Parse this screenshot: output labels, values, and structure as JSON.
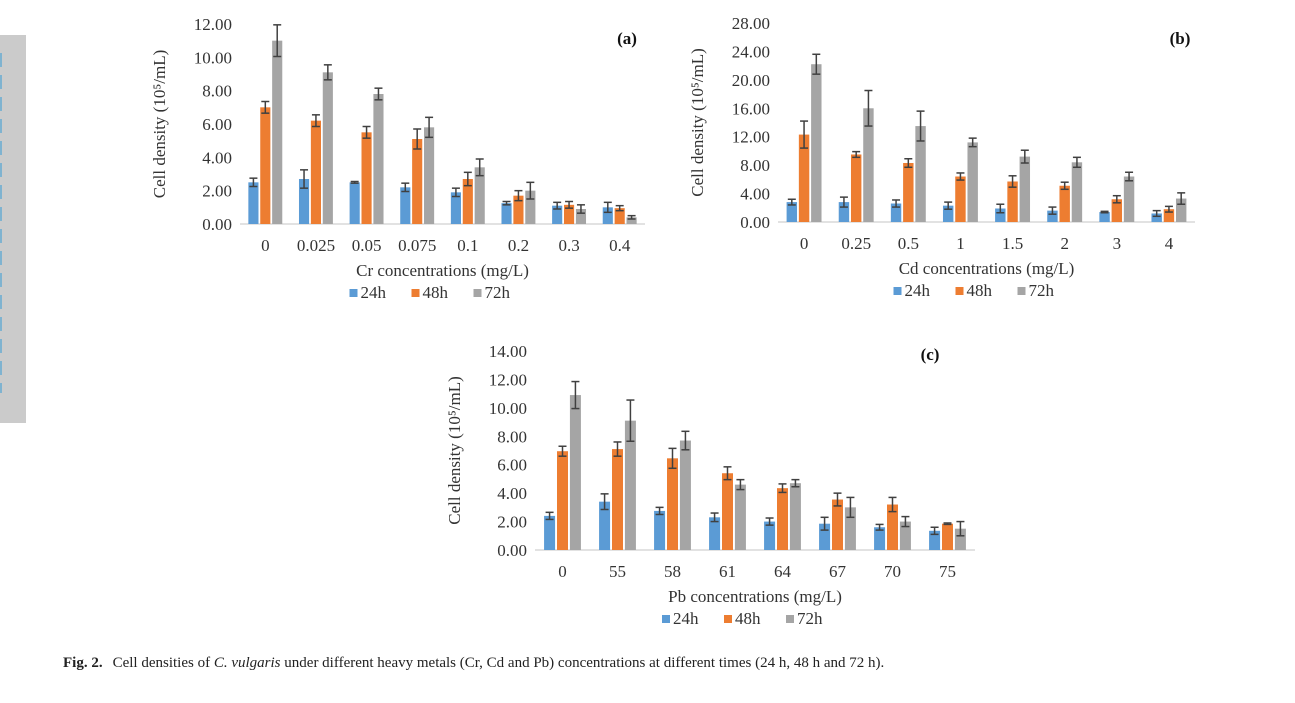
{
  "figure": {
    "caption_label": "Fig. 2.",
    "caption_pre": "Cell densities of ",
    "caption_species": "C. vulgaris",
    "caption_post": " under different heavy metals (Cr, Cd and Pb) concentrations at different times (24 h, 48 h and 72 h)."
  },
  "colors": {
    "24h": "#5b9bd5",
    "48h": "#ed7d31",
    "72h": "#a5a5a5",
    "error_bar": "#404040",
    "axis": "#d9d9d9"
  },
  "chart_data": [
    {
      "id": "a",
      "type": "bar",
      "panel_label": "(a)",
      "title": "",
      "xlabel": "Cr concentrations (mg/L)",
      "ylabel": "Cell density (10⁵/mL)",
      "ylim": [
        0,
        12
      ],
      "yticks": [
        "0.00",
        "2.00",
        "4.00",
        "6.00",
        "8.00",
        "10.00",
        "12.00"
      ],
      "categories": [
        "0",
        "0.025",
        "0.05",
        "0.075",
        "0.1",
        "0.2",
        "0.3",
        "0.4"
      ],
      "legend": [
        "24h",
        "48h",
        "72h"
      ],
      "legend_position": "bottom",
      "grid": false,
      "series": [
        {
          "name": "24h",
          "values": [
            2.5,
            2.7,
            2.5,
            2.2,
            1.9,
            1.25,
            1.1,
            1.0
          ],
          "errors": [
            0.25,
            0.55,
            0.05,
            0.25,
            0.25,
            0.1,
            0.2,
            0.3
          ]
        },
        {
          "name": "48h",
          "values": [
            7.0,
            6.2,
            5.5,
            5.1,
            2.7,
            1.7,
            1.15,
            0.95
          ],
          "errors": [
            0.35,
            0.35,
            0.35,
            0.6,
            0.4,
            0.3,
            0.2,
            0.15
          ]
        },
        {
          "name": "72h",
          "values": [
            11.0,
            9.1,
            7.8,
            5.8,
            3.4,
            2.0,
            0.9,
            0.4
          ],
          "errors": [
            0.95,
            0.45,
            0.35,
            0.6,
            0.5,
            0.5,
            0.25,
            0.1
          ]
        }
      ]
    },
    {
      "id": "b",
      "type": "bar",
      "panel_label": "(b)",
      "title": "",
      "xlabel": "Cd concentrations (mg/L)",
      "ylabel": "Cell density (10⁵/mL)",
      "ylim": [
        0,
        28
      ],
      "yticks": [
        "0.00",
        "4.00",
        "8.00",
        "12.00",
        "16.00",
        "20.00",
        "24.00",
        "28.00"
      ],
      "categories": [
        "0",
        "0.25",
        "0.5",
        "1",
        "1.5",
        "2",
        "3",
        "4"
      ],
      "legend": [
        "24h",
        "48h",
        "72h"
      ],
      "legend_position": "bottom",
      "grid": false,
      "series": [
        {
          "name": "24h",
          "values": [
            2.8,
            2.8,
            2.6,
            2.3,
            1.9,
            1.6,
            1.4,
            1.2
          ],
          "errors": [
            0.4,
            0.7,
            0.5,
            0.5,
            0.6,
            0.5,
            0.1,
            0.4
          ]
        },
        {
          "name": "48h",
          "values": [
            12.3,
            9.5,
            8.3,
            6.4,
            5.7,
            5.1,
            3.2,
            1.8
          ],
          "errors": [
            1.9,
            0.4,
            0.6,
            0.5,
            0.8,
            0.5,
            0.5,
            0.4
          ]
        },
        {
          "name": "72h",
          "values": [
            22.2,
            16.0,
            13.5,
            11.2,
            9.2,
            8.4,
            6.4,
            3.3
          ],
          "errors": [
            1.4,
            2.5,
            2.1,
            0.6,
            0.9,
            0.7,
            0.6,
            0.8
          ]
        }
      ]
    },
    {
      "id": "c",
      "type": "bar",
      "panel_label": "(c)",
      "title": "",
      "xlabel": "Pb concentrations (mg/L)",
      "ylabel": "Cell density (10⁵/mL)",
      "ylim": [
        0,
        14
      ],
      "yticks": [
        "0.00",
        "2.00",
        "4.00",
        "6.00",
        "8.00",
        "10.00",
        "12.00",
        "14.00"
      ],
      "categories": [
        "0",
        "55",
        "58",
        "61",
        "64",
        "67",
        "70",
        "75"
      ],
      "legend": [
        "24h",
        "48h",
        "72h"
      ],
      "legend_position": "bottom",
      "grid": false,
      "series": [
        {
          "name": "24h",
          "values": [
            2.4,
            3.4,
            2.75,
            2.3,
            2.0,
            1.85,
            1.6,
            1.35
          ],
          "errors": [
            0.25,
            0.55,
            0.25,
            0.3,
            0.25,
            0.45,
            0.2,
            0.25
          ]
        },
        {
          "name": "48h",
          "values": [
            6.95,
            7.1,
            6.45,
            5.4,
            4.35,
            3.55,
            3.2,
            1.85
          ],
          "errors": [
            0.35,
            0.5,
            0.7,
            0.45,
            0.3,
            0.45,
            0.5,
            0.05
          ]
        },
        {
          "name": "72h",
          "values": [
            10.9,
            9.1,
            7.7,
            4.6,
            4.7,
            3.0,
            2.0,
            1.5
          ],
          "errors": [
            0.95,
            1.45,
            0.65,
            0.35,
            0.25,
            0.7,
            0.35,
            0.5
          ]
        }
      ]
    }
  ]
}
